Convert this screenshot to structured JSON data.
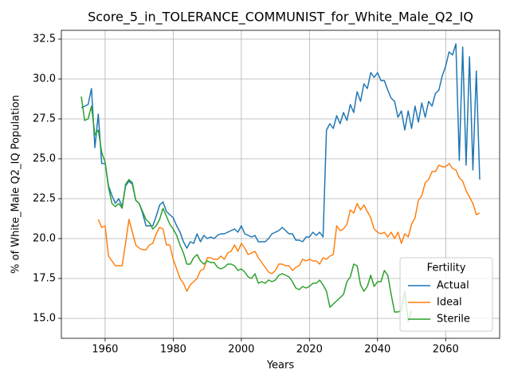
{
  "chart_data": {
    "type": "line",
    "title": "Score_5_in_TOLERANCE_COMMUNIST_for_White_Male_Q2_IQ",
    "xlabel": "Years",
    "ylabel": "% of White_Male Q2_IQ Population",
    "legend_title": "Fertility",
    "legend_loc": "lower right",
    "grid": true,
    "xlim": [
      1947.15,
      2075.85
    ],
    "ylim": [
      13.75,
      33.05
    ],
    "xticks": [
      1960,
      1980,
      2000,
      2020,
      2040,
      2060
    ],
    "yticks": [
      {
        "value": 15,
        "label": "15.0"
      },
      17.5,
      {
        "value": 20,
        "label": "20.0"
      },
      22.5,
      {
        "value": 25,
        "label": "25.0"
      },
      27.5,
      {
        "value": 30,
        "label": "30.0"
      },
      32.5
    ],
    "x": [
      1953,
      1954,
      1955,
      1956,
      1957,
      1958,
      1959,
      1960,
      1961,
      1962,
      1963,
      1964,
      1965,
      1966,
      1967,
      1968,
      1969,
      1970,
      1971,
      1972,
      1973,
      1974,
      1975,
      1976,
      1977,
      1978,
      1979,
      1980,
      1981,
      1982,
      1983,
      1984,
      1985,
      1986,
      1987,
      1988,
      1989,
      1990,
      1991,
      1992,
      1993,
      1994,
      1995,
      1996,
      1997,
      1998,
      1999,
      2000,
      2001,
      2002,
      2003,
      2004,
      2005,
      2006,
      2007,
      2008,
      2009,
      2010,
      2011,
      2012,
      2013,
      2014,
      2015,
      2016,
      2017,
      2018,
      2019,
      2020,
      2021,
      2022,
      2023,
      2024,
      2025,
      2026,
      2027,
      2028,
      2029,
      2030,
      2031,
      2032,
      2033,
      2034,
      2035,
      2036,
      2037,
      2038,
      2039,
      2040,
      2041,
      2042,
      2043,
      2044,
      2045,
      2046,
      2047,
      2048,
      2049,
      2050,
      2051,
      2052,
      2053,
      2054,
      2055,
      2056,
      2057,
      2058,
      2059,
      2060,
      2061,
      2062,
      2063,
      2064,
      2065,
      2066,
      2067,
      2068,
      2069,
      2070
    ],
    "series": [
      {
        "name": "Actual",
        "color": "#1f77b4",
        "values": [
          28.2,
          28.3,
          28.4,
          29.4,
          25.7,
          27.8,
          24.7,
          24.7,
          23.3,
          22.7,
          22.2,
          22.5,
          22.0,
          23.3,
          23.6,
          23.4,
          22.4,
          22.2,
          21.6,
          20.8,
          20.8,
          20.8,
          21.4,
          22.1,
          22.3,
          21.7,
          21.5,
          21.3,
          20.8,
          20.4,
          19.8,
          19.4,
          19.8,
          19.7,
          20.3,
          19.8,
          20.2,
          20.0,
          20.1,
          20.0,
          20.2,
          20.3,
          20.3,
          20.4,
          20.5,
          20.6,
          20.4,
          20.8,
          20.3,
          20.2,
          20.1,
          20.2,
          19.8,
          19.8,
          19.8,
          20.0,
          20.3,
          20.4,
          20.5,
          20.7,
          20.5,
          20.3,
          20.3,
          19.9,
          19.9,
          19.8,
          20.1,
          20.1,
          20.4,
          20.2,
          20.4,
          20.1,
          26.8,
          27.2,
          26.9,
          27.7,
          27.2,
          27.9,
          27.4,
          28.4,
          27.9,
          29.2,
          28.6,
          29.7,
          29.4,
          30.4,
          30.1,
          30.4,
          29.9,
          29.9,
          29.3,
          28.8,
          28.6,
          27.6,
          28.0,
          26.8,
          28.0,
          26.9,
          28.3,
          27.3,
          28.5,
          27.6,
          28.6,
          28.3,
          29.1,
          29.3,
          30.2,
          30.8,
          31.7,
          31.5,
          32.2,
          24.9,
          32.0,
          24.6,
          31.4,
          24.3,
          30.5,
          23.7
        ]
      },
      {
        "name": "Ideal",
        "color": "#ff7f0e",
        "values": [
          null,
          null,
          null,
          null,
          null,
          21.2,
          20.7,
          20.8,
          18.9,
          18.6,
          18.3,
          18.3,
          18.3,
          19.7,
          21.2,
          20.4,
          19.6,
          19.4,
          19.3,
          19.3,
          19.6,
          19.7,
          20.3,
          20.7,
          20.6,
          19.6,
          19.6,
          18.7,
          18.1,
          17.5,
          17.2,
          16.7,
          17.1,
          17.3,
          17.5,
          18.0,
          18.1,
          18.8,
          18.8,
          18.7,
          18.7,
          18.9,
          18.7,
          19.1,
          19.2,
          19.6,
          19.2,
          19.7,
          19.4,
          19.0,
          19.1,
          19.2,
          18.8,
          18.5,
          18.2,
          17.9,
          17.8,
          18.0,
          18.4,
          18.4,
          18.3,
          18.3,
          18.0,
          18.2,
          18.3,
          18.7,
          18.6,
          18.7,
          18.6,
          18.6,
          18.4,
          18.8,
          18.7,
          18.9,
          19.0,
          20.8,
          20.5,
          20.6,
          20.9,
          21.8,
          21.6,
          22.2,
          21.8,
          22.1,
          21.7,
          21.3,
          20.6,
          20.4,
          20.3,
          20.4,
          20.1,
          20.4,
          20.0,
          20.4,
          19.7,
          20.3,
          20.1,
          20.9,
          21.3,
          22.4,
          22.7,
          23.5,
          23.7,
          24.2,
          24.2,
          24.6,
          24.5,
          24.5,
          24.7,
          24.4,
          24.3,
          23.8,
          23.6,
          23.0,
          22.6,
          22.2,
          21.5,
          21.6
        ]
      },
      {
        "name": "Sterile",
        "color": "#2ca02c",
        "values": [
          28.9,
          27.4,
          27.5,
          28.3,
          26.5,
          26.8,
          25.4,
          24.8,
          23.2,
          22.2,
          22.0,
          22.2,
          21.9,
          23.4,
          23.7,
          23.5,
          22.4,
          22.2,
          21.7,
          21.2,
          21.0,
          20.6,
          20.8,
          21.2,
          21.9,
          21.4,
          20.9,
          20.6,
          20.2,
          19.6,
          19.1,
          18.4,
          18.4,
          18.8,
          19.0,
          18.6,
          18.4,
          18.6,
          18.5,
          18.5,
          18.2,
          18.1,
          18.2,
          18.4,
          18.4,
          18.3,
          18.0,
          18.1,
          17.9,
          17.6,
          17.5,
          17.8,
          17.2,
          17.3,
          17.2,
          17.4,
          17.3,
          17.4,
          17.7,
          17.8,
          17.7,
          17.6,
          17.3,
          16.9,
          16.8,
          17.0,
          16.9,
          17.0,
          17.2,
          17.2,
          17.4,
          17.1,
          16.7,
          15.7,
          15.9,
          16.1,
          16.3,
          16.5,
          17.3,
          17.6,
          18.4,
          18.3,
          17.1,
          16.7,
          17.0,
          17.7,
          17.0,
          17.3,
          17.3,
          18.0,
          17.7,
          16.5,
          15.4,
          15.4,
          15.5,
          16.7,
          14.8,
          15.5,
          null,
          null,
          null,
          null,
          null,
          null,
          null,
          null,
          null,
          null,
          null,
          null,
          null,
          null,
          null,
          null,
          null,
          null,
          null,
          null
        ]
      }
    ]
  }
}
